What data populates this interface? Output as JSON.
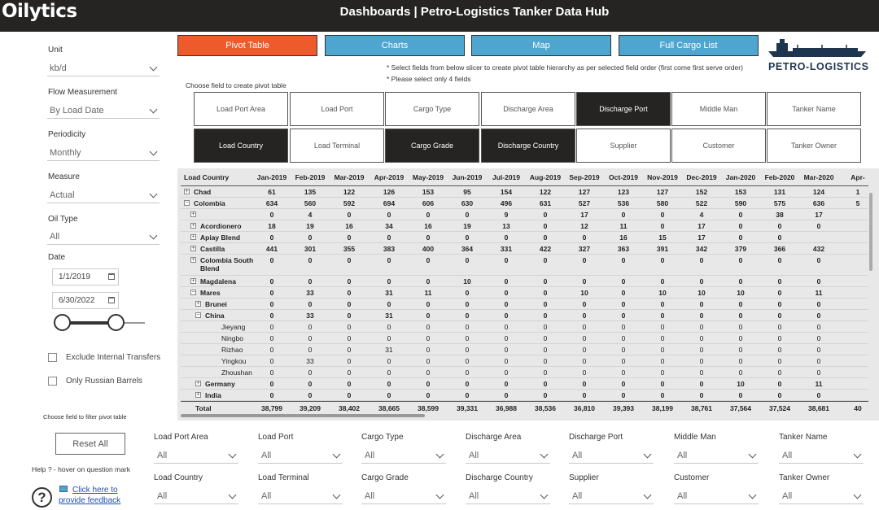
{
  "app": {
    "logo": "Oilytics",
    "title": "Dashboards | Petro-Logistics Tanker Data Hub"
  },
  "brand": {
    "name": "PETRO-LOGISTICS",
    "accent": "#ee5a2b",
    "tab_blue": "#4ea5d0",
    "dark": "#252423"
  },
  "left": {
    "unit_label": "Unit",
    "unit_value": "kb/d",
    "flow_label": "Flow Measurement",
    "flow_value": "By Load Date",
    "periodicity_label": "Periodicity",
    "periodicity_value": "Monthly",
    "measure_label": "Measure",
    "measure_value": "Actual",
    "oil_label": "Oil Type",
    "oil_value": "All",
    "date_label": "Date",
    "date_start": "1/1/2019",
    "date_end": "6/30/2022",
    "exclude_label": "Exclude Internal Transfers",
    "russian_label": "Only Russian Barrels",
    "filter_hint": "Choose field to filter pivot table",
    "reset_label": "Reset All",
    "help_text": "Help ? - hover on question mark",
    "help_q": "?",
    "feedback_label": "Click here to provide feedback"
  },
  "tabs": [
    "Pivot Table",
    "Charts",
    "Map",
    "Full Cargo List"
  ],
  "notes": [
    "* Select fields from below slicer to create pivot table hierarchy as per selected field order (first come first serve order)",
    "* Please select only 4 fields"
  ],
  "choose_field_label": "Choose field to create pivot table",
  "fields_row1": [
    {
      "label": "Load Port Area",
      "selected": false
    },
    {
      "label": "Load Port",
      "selected": false
    },
    {
      "label": "Cargo Type",
      "selected": false
    },
    {
      "label": "Discharge Area",
      "selected": false
    },
    {
      "label": "Discharge Port",
      "selected": true
    },
    {
      "label": "Middle Man",
      "selected": false
    },
    {
      "label": "Tanker Name",
      "selected": false
    }
  ],
  "fields_row2": [
    {
      "label": "Load Country",
      "selected": true
    },
    {
      "label": "Load Terminal",
      "selected": false
    },
    {
      "label": "Cargo Grade",
      "selected": true
    },
    {
      "label": "Discharge Country",
      "selected": true
    },
    {
      "label": "Supplier",
      "selected": false
    },
    {
      "label": "Customer",
      "selected": false
    },
    {
      "label": "Tanker Owner",
      "selected": false
    }
  ],
  "pivot": {
    "row_header": "Load Country",
    "columns": [
      "Jan-2019",
      "Feb-2019",
      "Mar-2019",
      "Apr-2019",
      "May-2019",
      "Jun-2019",
      "Jul-2019",
      "Aug-2019",
      "Sep-2019",
      "Oct-2019",
      "Nov-2019",
      "Dec-2019",
      "Jan-2020",
      "Feb-2020",
      "Mar-2020",
      "Apr-"
    ],
    "rows": [
      {
        "label": "Chad",
        "level": 0,
        "exp": "+",
        "bold": true,
        "values": [
          "61",
          "135",
          "122",
          "126",
          "153",
          "95",
          "154",
          "122",
          "127",
          "123",
          "127",
          "152",
          "153",
          "131",
          "124",
          "1"
        ]
      },
      {
        "label": "Colombia",
        "level": 0,
        "exp": "-",
        "bold": true,
        "values": [
          "634",
          "560",
          "592",
          "694",
          "606",
          "630",
          "496",
          "631",
          "527",
          "536",
          "580",
          "522",
          "590",
          "575",
          "636",
          "5"
        ]
      },
      {
        "label": "",
        "level": 1,
        "exp": "+",
        "bold": true,
        "values": [
          "0",
          "4",
          "0",
          "0",
          "0",
          "0",
          "9",
          "0",
          "17",
          "0",
          "0",
          "4",
          "0",
          "38",
          "17",
          ""
        ]
      },
      {
        "label": "Acordionero",
        "level": 1,
        "exp": "+",
        "bold": true,
        "values": [
          "18",
          "19",
          "16",
          "34",
          "16",
          "19",
          "13",
          "0",
          "12",
          "11",
          "0",
          "17",
          "0",
          "0",
          "0",
          ""
        ]
      },
      {
        "label": "Apiay Blend",
        "level": 1,
        "exp": "+",
        "bold": true,
        "values": [
          "0",
          "0",
          "0",
          "0",
          "0",
          "0",
          "0",
          "0",
          "0",
          "16",
          "15",
          "17",
          "0",
          "0",
          "",
          ""
        ]
      },
      {
        "label": "Castilla",
        "level": 1,
        "exp": "+",
        "bold": true,
        "values": [
          "441",
          "301",
          "355",
          "383",
          "400",
          "364",
          "331",
          "422",
          "327",
          "363",
          "391",
          "342",
          "379",
          "366",
          "432",
          ""
        ]
      },
      {
        "label": "Colombia South Blend",
        "level": 1,
        "exp": "+",
        "bold": true,
        "tall": true,
        "values": [
          "0",
          "0",
          "0",
          "0",
          "0",
          "0",
          "0",
          "0",
          "0",
          "0",
          "0",
          "0",
          "0",
          "0",
          "0",
          ""
        ]
      },
      {
        "label": "Magdalena",
        "level": 1,
        "exp": "+",
        "bold": true,
        "values": [
          "0",
          "0",
          "0",
          "0",
          "0",
          "10",
          "0",
          "0",
          "0",
          "0",
          "0",
          "0",
          "0",
          "0",
          "0",
          ""
        ]
      },
      {
        "label": "Mares",
        "level": 1,
        "exp": "-",
        "bold": true,
        "values": [
          "0",
          "33",
          "0",
          "31",
          "11",
          "0",
          "0",
          "0",
          "10",
          "0",
          "10",
          "10",
          "10",
          "0",
          "11",
          ""
        ]
      },
      {
        "label": "Brunei",
        "level": 2,
        "exp": "+",
        "bold": true,
        "values": [
          "0",
          "0",
          "0",
          "0",
          "0",
          "0",
          "0",
          "0",
          "0",
          "0",
          "0",
          "0",
          "0",
          "0",
          "0",
          ""
        ]
      },
      {
        "label": "China",
        "level": 2,
        "exp": "-",
        "bold": true,
        "values": [
          "0",
          "33",
          "0",
          "31",
          "0",
          "0",
          "0",
          "0",
          "0",
          "0",
          "0",
          "0",
          "0",
          "0",
          "0",
          ""
        ]
      },
      {
        "label": "Jieyang",
        "level": 3,
        "exp": "",
        "bold": false,
        "values": [
          "0",
          "0",
          "0",
          "0",
          "0",
          "0",
          "0",
          "0",
          "0",
          "0",
          "0",
          "0",
          "0",
          "0",
          "0",
          ""
        ]
      },
      {
        "label": "Ningbo",
        "level": 3,
        "exp": "",
        "bold": false,
        "values": [
          "0",
          "0",
          "0",
          "0",
          "0",
          "0",
          "0",
          "0",
          "0",
          "0",
          "0",
          "0",
          "0",
          "0",
          "0",
          ""
        ]
      },
      {
        "label": "Rizhao",
        "level": 3,
        "exp": "",
        "bold": false,
        "values": [
          "0",
          "0",
          "0",
          "31",
          "0",
          "0",
          "0",
          "0",
          "0",
          "0",
          "0",
          "0",
          "0",
          "0",
          "0",
          ""
        ]
      },
      {
        "label": "Yingkou",
        "level": 3,
        "exp": "",
        "bold": false,
        "values": [
          "0",
          "33",
          "0",
          "0",
          "0",
          "0",
          "0",
          "0",
          "0",
          "0",
          "0",
          "0",
          "0",
          "0",
          "0",
          ""
        ]
      },
      {
        "label": "Zhoushan",
        "level": 3,
        "exp": "",
        "bold": false,
        "values": [
          "0",
          "0",
          "0",
          "0",
          "0",
          "0",
          "0",
          "0",
          "0",
          "0",
          "0",
          "0",
          "0",
          "0",
          "0",
          ""
        ]
      },
      {
        "label": "Germany",
        "level": 2,
        "exp": "+",
        "bold": true,
        "values": [
          "0",
          "0",
          "0",
          "0",
          "0",
          "0",
          "0",
          "0",
          "0",
          "0",
          "0",
          "0",
          "10",
          "0",
          "11",
          ""
        ]
      },
      {
        "label": "India",
        "level": 2,
        "exp": "+",
        "bold": true,
        "values": [
          "0",
          "0",
          "0",
          "0",
          "0",
          "0",
          "0",
          "0",
          "0",
          "0",
          "0",
          "0",
          "0",
          "0",
          "0",
          ""
        ]
      }
    ],
    "total_label": "Total",
    "totals": [
      "38,799",
      "39,209",
      "38,402",
      "38,665",
      "38,599",
      "39,331",
      "36,988",
      "38,536",
      "36,810",
      "39,393",
      "38,199",
      "38,761",
      "37,564",
      "37,524",
      "38,681",
      "40"
    ]
  },
  "bottom_slicers": [
    {
      "label": "Load Port Area",
      "value": "All"
    },
    {
      "label": "Load Port",
      "value": "All"
    },
    {
      "label": "Cargo Type",
      "value": "All"
    },
    {
      "label": "Discharge Area",
      "value": "All"
    },
    {
      "label": "Discharge Port",
      "value": "All"
    },
    {
      "label": "Middle Man",
      "value": "All"
    },
    {
      "label": "Tanker Name",
      "value": "All"
    },
    {
      "label": "Load Country",
      "value": "All"
    },
    {
      "label": "Load Terminal",
      "value": "All"
    },
    {
      "label": "Cargo Grade",
      "value": "All"
    },
    {
      "label": "Discharge Country",
      "value": "All"
    },
    {
      "label": "Supplier",
      "value": "All"
    },
    {
      "label": "Customer",
      "value": "All"
    },
    {
      "label": "Tanker Owner",
      "value": "All"
    }
  ]
}
